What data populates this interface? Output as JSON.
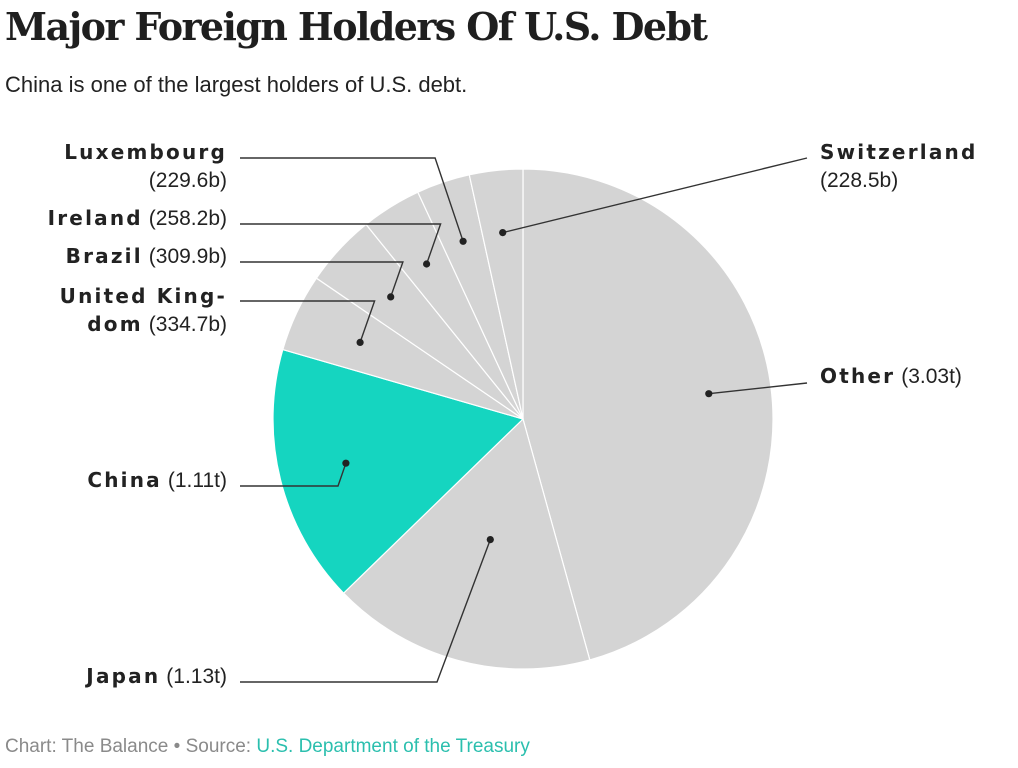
{
  "title": "Major Foreign Holders Of U.S. Debt",
  "subtitle": "China is one of the largest holders of U.S. debt.",
  "footer": {
    "credit": "Chart: The Balance",
    "separator": "•",
    "source_label": "Source:",
    "source_name": "U.S. Department of the Treasury"
  },
  "colors": {
    "highlight": "#15d5c0",
    "slice": "#d4d4d4",
    "slice_border": "#ffffff",
    "leader": "#333333",
    "source_link": "#2bbfae"
  },
  "chart_data": {
    "type": "pie",
    "unit": "USD",
    "slices": [
      {
        "label": "Other",
        "display": "(3.03t)",
        "value": 3030,
        "highlight": false
      },
      {
        "label": "Japan",
        "display": "(1.13t)",
        "value": 1130,
        "highlight": false
      },
      {
        "label": "China",
        "display": "(1.11t)",
        "value": 1110,
        "highlight": true
      },
      {
        "label": "United Kingdom",
        "display": "(334.7b)",
        "value": 334.7,
        "highlight": false
      },
      {
        "label": "Brazil",
        "display": "(309.9b)",
        "value": 309.9,
        "highlight": false
      },
      {
        "label": "Ireland",
        "display": "(258.2b)",
        "value": 258.2,
        "highlight": false
      },
      {
        "label": "Luxembourg",
        "display": "(229.6b)",
        "value": 229.6,
        "highlight": false
      },
      {
        "label": "Switzerland",
        "display": "(228.5b)",
        "value": 228.5,
        "highlight": false
      }
    ]
  }
}
